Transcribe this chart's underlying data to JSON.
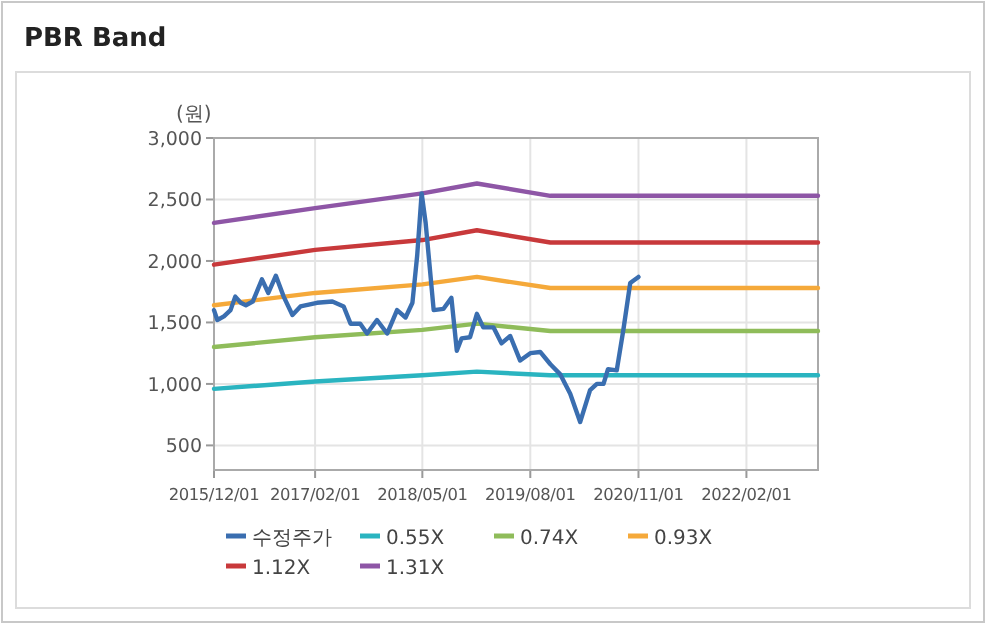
{
  "chart_data": {
    "type": "line",
    "title": "PBR Band",
    "ylabel": "(원)",
    "xlim": [
      "2015-12-01",
      "2022-12-01"
    ],
    "xticks": [
      {
        "value": "2015-12-01",
        "label": "2015/12/01"
      },
      {
        "value": "2017-02-01",
        "label": "2017/02/01"
      },
      {
        "value": "2018-05-01",
        "label": "2018/05/01"
      },
      {
        "value": "2019-08-01",
        "label": "2019/08/01"
      },
      {
        "value": "2020-11-01",
        "label": "2020/11/01"
      },
      {
        "value": "2022-02-01",
        "label": "2022/02/01"
      }
    ],
    "ylim": [
      300,
      3000
    ],
    "yticks": [
      {
        "value": 500,
        "label": "500"
      },
      {
        "value": 1000,
        "label": "1,000"
      },
      {
        "value": 1500,
        "label": "1,500"
      },
      {
        "value": 2000,
        "label": "2,000"
      },
      {
        "value": 2500,
        "label": "2,500"
      },
      {
        "value": 3000,
        "label": "3,000"
      }
    ],
    "grid": true,
    "legend": "bottom",
    "marker": "none",
    "line_style": "solid",
    "series": [
      {
        "name": "수정주가",
        "color": "#3a6eb0",
        "x": [
          "2015-12-01",
          "2015-12-15",
          "2016-01-12",
          "2016-02-09",
          "2016-02-29",
          "2016-03-23",
          "2016-04-14",
          "2016-05-13",
          "2016-06-21",
          "2016-07-18",
          "2016-08-19",
          "2016-09-21",
          "2016-10-28",
          "2016-12-01",
          "2017-02-09",
          "2017-04-15",
          "2017-06-02",
          "2017-07-01",
          "2017-08-11",
          "2017-09-09",
          "2017-10-21",
          "2017-12-03",
          "2018-01-14",
          "2018-02-19",
          "2018-03-20",
          "2018-04-09",
          "2018-04-28",
          "2018-05-15",
          "2018-06-18",
          "2018-07-29",
          "2018-09-01",
          "2018-09-24",
          "2018-10-14",
          "2018-11-19",
          "2018-12-18",
          "2019-01-14",
          "2019-02-26",
          "2019-04-01",
          "2019-05-08",
          "2019-06-19",
          "2019-08-01",
          "2019-09-12",
          "2019-10-25",
          "2019-12-05",
          "2020-01-17",
          "2020-02-28",
          "2020-04-10",
          "2020-05-09",
          "2020-06-06",
          "2020-06-25",
          "2020-08-01",
          "2020-08-29",
          "2020-09-27",
          "2020-11-01"
        ],
        "values": [
          1600,
          1520,
          1550,
          1600,
          1710,
          1660,
          1640,
          1670,
          1850,
          1740,
          1880,
          1710,
          1560,
          1630,
          1660,
          1670,
          1630,
          1490,
          1490,
          1410,
          1520,
          1410,
          1600,
          1540,
          1660,
          2040,
          2550,
          2310,
          1600,
          1610,
          1700,
          1270,
          1370,
          1380,
          1570,
          1460,
          1460,
          1330,
          1390,
          1190,
          1250,
          1260,
          1160,
          1080,
          920,
          690,
          950,
          1000,
          1000,
          1120,
          1110,
          1440,
          1820,
          1870
        ]
      },
      {
        "name": "0.55X",
        "color": "#2ab4c0",
        "x": [
          "2015-12-01",
          "2017-02-01",
          "2018-05-01",
          "2018-12-18",
          "2019-10-25",
          "2022-12-01"
        ],
        "values": [
          960,
          1020,
          1070,
          1100,
          1070,
          1070
        ]
      },
      {
        "name": "0.74X",
        "color": "#8fbc5a",
        "x": [
          "2015-12-01",
          "2017-02-01",
          "2018-05-01",
          "2018-12-18",
          "2019-10-25",
          "2022-12-01"
        ],
        "values": [
          1300,
          1380,
          1440,
          1490,
          1430,
          1430
        ]
      },
      {
        "name": "0.93X",
        "color": "#f5a93a",
        "x": [
          "2015-12-01",
          "2017-02-01",
          "2018-05-01",
          "2018-12-18",
          "2019-10-25",
          "2022-12-01"
        ],
        "values": [
          1640,
          1740,
          1810,
          1870,
          1780,
          1780
        ]
      },
      {
        "name": "1.12X",
        "color": "#c8393b",
        "x": [
          "2015-12-01",
          "2017-02-01",
          "2018-05-01",
          "2018-12-18",
          "2019-10-25",
          "2022-12-01"
        ],
        "values": [
          1970,
          2090,
          2170,
          2250,
          2150,
          2150
        ]
      },
      {
        "name": "1.31X",
        "color": "#8e56a6",
        "x": [
          "2015-12-01",
          "2017-02-01",
          "2018-05-01",
          "2018-12-18",
          "2019-10-25",
          "2022-12-01"
        ],
        "values": [
          2310,
          2430,
          2550,
          2630,
          2530,
          2530
        ]
      }
    ]
  }
}
